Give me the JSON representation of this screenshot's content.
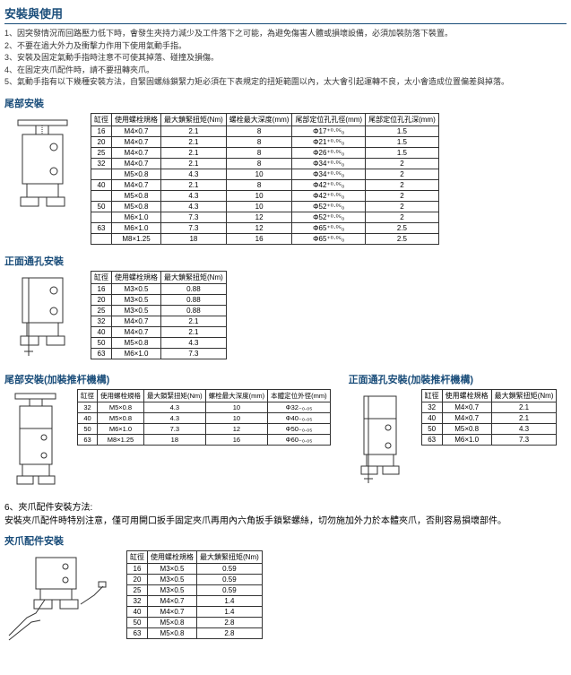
{
  "main_title": "安裝與使用",
  "notes": [
    "1、因突發情況而回路壓力低下時，會發生夾持力減少及工件落下之可能，為避免傷害人體或損壞設備，必須加裝防落下裝置。",
    "2、不要在過大外力及衝擊力作用下使用氣動手指。",
    "3、安裝及固定氣動手指時注意不可使其掉落、碰撞及損傷。",
    "4、在固定夾爪配件時，請不要扭轉夾爪。",
    "5、氣動手指有以下幾種安裝方法，自緊固螺絲鎖緊力矩必須在下表規定的扭矩範圍以內，太大會引起運轉不良，太小會造成位置偏差與掉落。"
  ],
  "s1_title": "尾部安裝",
  "s1": {
    "headers": [
      "缸徑",
      "使用螺栓規格",
      "最大鎖緊扭矩(Nm)",
      "螺栓最大深度(mm)",
      "尾部定位孔孔徑(mm)",
      "尾部定位孔孔深(mm)"
    ],
    "rows": [
      [
        "16",
        "M4×0.7",
        "2.1",
        "8",
        "Φ17⁺⁰·⁰⁵₀",
        "1.5"
      ],
      [
        "20",
        "M4×0.7",
        "2.1",
        "8",
        "Φ21⁺⁰·⁰⁵₀",
        "1.5"
      ],
      [
        "25",
        "M4×0.7",
        "2.1",
        "8",
        "Φ26⁺⁰·⁰⁵₀",
        "1.5"
      ],
      [
        "32",
        "M4×0.7",
        "2.1",
        "8",
        "Φ34⁺⁰·⁰⁵₀",
        "2"
      ],
      [
        "",
        "M5×0.8",
        "4.3",
        "10",
        "Φ34⁺⁰·⁰⁵₀",
        "2"
      ],
      [
        "40",
        "M4×0.7",
        "2.1",
        "8",
        "Φ42⁺⁰·⁰⁵₀",
        "2"
      ],
      [
        "",
        "M5×0.8",
        "4.3",
        "10",
        "Φ42⁺⁰·⁰⁵₀",
        "2"
      ],
      [
        "50",
        "M5×0.8",
        "4.3",
        "10",
        "Φ52⁺⁰·⁰⁵₀",
        "2"
      ],
      [
        "",
        "M6×1.0",
        "7.3",
        "12",
        "Φ52⁺⁰·⁰⁵₀",
        "2"
      ],
      [
        "63",
        "M6×1.0",
        "7.3",
        "12",
        "Φ65⁺⁰·⁰⁵₀",
        "2.5"
      ],
      [
        "",
        "M8×1.25",
        "18",
        "16",
        "Φ65⁺⁰·⁰⁵₀",
        "2.5"
      ]
    ]
  },
  "s2_title": "正面通孔安裝",
  "s2": {
    "headers": [
      "缸徑",
      "使用螺栓規格",
      "最大鎖緊扭矩(Nm)"
    ],
    "rows": [
      [
        "16",
        "M3×0.5",
        "0.88"
      ],
      [
        "20",
        "M3×0.5",
        "0.88"
      ],
      [
        "25",
        "M3×0.5",
        "0.88"
      ],
      [
        "32",
        "M4×0.7",
        "2.1"
      ],
      [
        "40",
        "M4×0.7",
        "2.1"
      ],
      [
        "50",
        "M5×0.8",
        "4.3"
      ],
      [
        "63",
        "M6×1.0",
        "7.3"
      ]
    ]
  },
  "s3_title": "尾部安裝(加裝推杆機構)",
  "s3": {
    "headers": [
      "缸徑",
      "使用螺栓規格",
      "最大鎖緊扭矩(Nm)",
      "螺栓最大深度(mm)",
      "本體定位外徑(mm)"
    ],
    "rows": [
      [
        "32",
        "M5×0.8",
        "4.3",
        "10",
        "Φ32₋₀.₀₅"
      ],
      [
        "40",
        "M5×0.8",
        "4.3",
        "10",
        "Φ40₋₀.₀₅"
      ],
      [
        "50",
        "M6×1.0",
        "7.3",
        "12",
        "Φ50₋₀.₀₅"
      ],
      [
        "63",
        "M8×1.25",
        "18",
        "16",
        "Φ60₋₀.₀₅"
      ]
    ]
  },
  "s4_title": "正面通孔安裝(加裝推杆機構)",
  "s4": {
    "headers": [
      "缸徑",
      "使用螺栓規格",
      "最大鎖緊扭矩(Nm)"
    ],
    "rows": [
      [
        "32",
        "M4×0.7",
        "2.1"
      ],
      [
        "40",
        "M4×0.7",
        "2.1"
      ],
      [
        "50",
        "M5×0.8",
        "4.3"
      ],
      [
        "63",
        "M6×1.0",
        "7.3"
      ]
    ]
  },
  "note6": "6、夾爪配件安裝方法:\n安裝夾爪配件時特別注意，僅可用開口扳手固定夾爪再用內六角扳手鎖緊螺絲，切勿施加外力於本體夾爪，否則容易損壞部件。",
  "s5_title": "夾爪配件安裝",
  "s5": {
    "headers": [
      "缸徑",
      "使用螺栓規格",
      "最大鎖緊扭矩(Nm)"
    ],
    "rows": [
      [
        "16",
        "M3×0.5",
        "0.59"
      ],
      [
        "20",
        "M3×0.5",
        "0.59"
      ],
      [
        "25",
        "M3×0.5",
        "0.59"
      ],
      [
        "32",
        "M4×0.7",
        "1.4"
      ],
      [
        "40",
        "M4×0.7",
        "1.4"
      ],
      [
        "50",
        "M5×0.8",
        "2.8"
      ],
      [
        "63",
        "M5×0.8",
        "2.8"
      ]
    ]
  }
}
